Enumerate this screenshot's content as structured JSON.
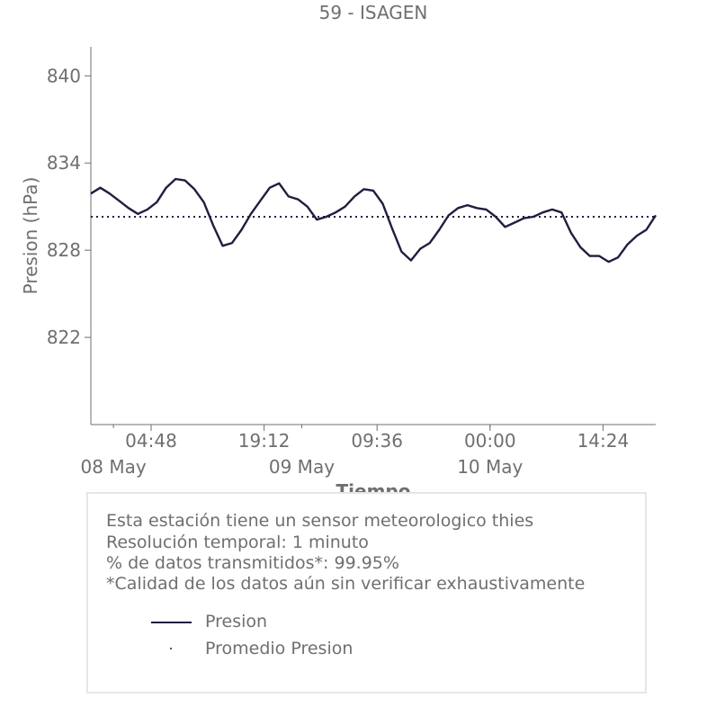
{
  "chart_data": {
    "type": "line",
    "title": "59 - ISAGEN",
    "xlabel": "Tiempo",
    "ylabel": "Presion (hPa)",
    "ylim": [
      816,
      842
    ],
    "xlim": [
      0,
      60
    ],
    "yticks": [
      840,
      834,
      828,
      822
    ],
    "xticks": [
      {
        "at": 6.4,
        "label": "04:48"
      },
      {
        "at": 18.4,
        "label": "19:12"
      },
      {
        "at": 30.4,
        "label": "09:36"
      },
      {
        "at": 42.4,
        "label": "00:00"
      },
      {
        "at": 54.4,
        "label": "14:24"
      }
    ],
    "date_labels": [
      {
        "at": 2.4,
        "label": "08 May"
      },
      {
        "at": 22.4,
        "label": "09 May"
      },
      {
        "at": 42.4,
        "label": "10 May"
      }
    ],
    "grid": false,
    "legend_position": "bottom",
    "series": [
      {
        "name": "Presion",
        "color": "#1e1e3f",
        "x": [
          0,
          1,
          2,
          3,
          4,
          5,
          6,
          7,
          8,
          9,
          10,
          11,
          12,
          13,
          14,
          15,
          16,
          17,
          18,
          19,
          20,
          21,
          22,
          23,
          24,
          25,
          26,
          27,
          28,
          29,
          30,
          31,
          32,
          33,
          34,
          35,
          36,
          37,
          38,
          39,
          40,
          41,
          42,
          43,
          44,
          45,
          46,
          47,
          48,
          49,
          50,
          51,
          52,
          53,
          54,
          55,
          56,
          57,
          58,
          59,
          60
        ],
        "values": [
          831.9,
          832.3,
          831.9,
          831.4,
          830.9,
          830.5,
          830.8,
          831.3,
          832.3,
          832.9,
          832.8,
          832.2,
          831.3,
          829.7,
          828.3,
          828.5,
          829.4,
          830.5,
          831.4,
          832.3,
          832.6,
          831.7,
          831.5,
          831.0,
          830.1,
          830.3,
          830.6,
          831.0,
          831.7,
          832.2,
          832.1,
          831.2,
          829.5,
          827.9,
          827.3,
          828.1,
          828.5,
          829.4,
          830.4,
          830.9,
          831.1,
          830.9,
          830.8,
          830.3,
          829.6,
          829.9,
          830.2,
          830.3,
          830.6,
          830.8,
          830.6,
          829.2,
          828.2,
          827.6,
          827.6,
          827.2,
          827.5,
          828.4,
          829.0,
          829.4,
          830.4
        ]
      },
      {
        "name": "Promedio Presion",
        "color": "#1e1e3f",
        "style": "dotted",
        "x": [
          0,
          60
        ],
        "values": [
          830.3,
          830.3
        ]
      }
    ]
  },
  "info": {
    "line1": "Esta estación tiene un sensor meteorologico thies",
    "line2": "Resolución temporal: 1 minuto",
    "line3": "% de datos transmitidos*: 99.95%",
    "line4": "*Calidad de los datos aún sin verificar exhaustivamente"
  },
  "legend": {
    "presion": "Presion",
    "promedio": "Promedio Presion"
  },
  "colors": {
    "line": "#1e1e3f",
    "text": "#6f6f6f",
    "axis": "#6f6f6f",
    "box_border": "#e6e6e6"
  }
}
